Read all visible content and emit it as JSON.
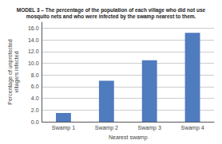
{
  "chart_data": {
    "type": "bar",
    "title": "MODEL 3 – The percentage of the population of each village who did not use\nmosquito nets and who were infected by the swamp nearest to them.",
    "xlabel": "Nearest swamp",
    "ylabel": "Percentage of unprotected\nvillagers infected",
    "categories": [
      "Swamp 1",
      "Swamp 2",
      "Swamp 3",
      "Swamp 4"
    ],
    "values": [
      1.5,
      7.0,
      10.5,
      15.2
    ],
    "color": "#4f7bbf",
    "ylim": [
      0,
      17.0
    ],
    "yticks": [
      {
        "value": 0.0,
        "label": "0.0"
      },
      {
        "value": 2.0,
        "label": "2.0"
      },
      {
        "value": 4.0,
        "label": "4.0"
      },
      {
        "value": 6.0,
        "label": "6.0"
      },
      {
        "value": 8.0,
        "label": "8.0"
      },
      {
        "value": 10.0,
        "label": "10.0"
      },
      {
        "value": 12.0,
        "label": "12.0"
      },
      {
        "value": 14.0,
        "label": "14.0"
      },
      {
        "value": 16.0,
        "label": "16.0"
      }
    ],
    "grid": true
  }
}
